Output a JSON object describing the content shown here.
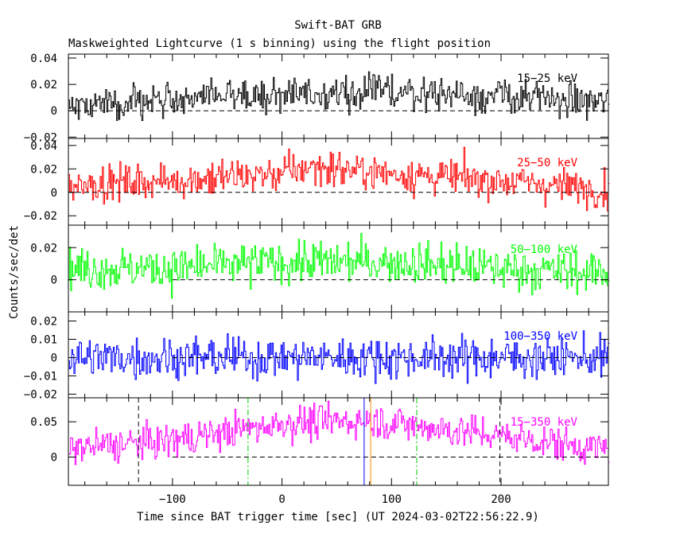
{
  "title": "Swift-BAT GRB",
  "subtitle": "Maskweighted Lightcurve (1 s binning) using the flight position",
  "chart_data": {
    "type": "line",
    "xlabel": "Time since BAT trigger time [sec] (UT 2024-03-02T22:56:22.9)",
    "ylabel": "Counts/sec/det",
    "xlim": [
      -195,
      298
    ],
    "xticks": [
      -100,
      0,
      100,
      200
    ],
    "xtick_labels": [
      "−100",
      "0",
      "100",
      "200"
    ],
    "seed": 13,
    "panels": [
      {
        "label": "15−25 keV",
        "color": "#000000",
        "ylim": [
          -0.021,
          0.043
        ],
        "yticks": [
          -0.02,
          0,
          0.02,
          0.04
        ],
        "ytick_labels": [
          "−0.02",
          "0",
          "0.02",
          "0.04"
        ],
        "baseline": [
          [
            -195,
            0.005
          ],
          [
            -100,
            0.009
          ],
          [
            0,
            0.013
          ],
          [
            100,
            0.015
          ],
          [
            200,
            0.011
          ],
          [
            298,
            0.006
          ]
        ],
        "noise": 0.0065,
        "zero_line": [
          -195,
          298
        ]
      },
      {
        "label": "25−50 keV",
        "color": "#ff0000",
        "ylim": [
          -0.028,
          0.046
        ],
        "yticks": [
          -0.02,
          0,
          0.02,
          0.04
        ],
        "ytick_labels": [
          "−0.02",
          "0",
          "0.02",
          "0.04"
        ],
        "baseline": [
          [
            -195,
            0.007
          ],
          [
            -100,
            0.01
          ],
          [
            0,
            0.016
          ],
          [
            25,
            0.022
          ],
          [
            100,
            0.016
          ],
          [
            200,
            0.01
          ],
          [
            298,
            0.002
          ]
        ],
        "noise": 0.0075,
        "zero_line": [
          -195,
          298
        ]
      },
      {
        "label": "50−100 keV",
        "color": "#00ff00",
        "ylim": [
          -0.02,
          0.034
        ],
        "yticks": [
          0,
          0.02
        ],
        "ytick_labels": [
          "0",
          "0.02"
        ],
        "baseline": [
          [
            -195,
            0.007
          ],
          [
            -100,
            0.007
          ],
          [
            0,
            0.011
          ],
          [
            100,
            0.011
          ],
          [
            200,
            0.007
          ],
          [
            298,
            0.004
          ]
        ],
        "noise": 0.0065,
        "zero_line": [
          -100,
          298
        ]
      },
      {
        "label": "100−350 keV",
        "color": "#0000ff",
        "ylim": [
          -0.022,
          0.025
        ],
        "yticks": [
          -0.02,
          -0.01,
          0,
          0.01,
          0.02
        ],
        "ytick_labels": [
          "−0.02",
          "−0.01",
          "0",
          "0.01",
          "0.02"
        ],
        "baseline": [
          [
            -195,
            0.0
          ],
          [
            0,
            0.0
          ],
          [
            200,
            0.0
          ],
          [
            298,
            0.0
          ]
        ],
        "noise": 0.0055,
        "zero_line": [
          -100,
          298
        ]
      },
      {
        "label": "15−350 keV",
        "color": "#ff00ff",
        "ylim": [
          -0.04,
          0.084
        ],
        "yticks": [
          0,
          0.05
        ],
        "ytick_labels": [
          "0",
          "0.05"
        ],
        "baseline": [
          [
            -195,
            0.012
          ],
          [
            -100,
            0.024
          ],
          [
            0,
            0.048
          ],
          [
            80,
            0.052
          ],
          [
            200,
            0.03
          ],
          [
            298,
            0.01
          ]
        ],
        "noise": 0.012,
        "zero_line": [
          -100,
          298
        ]
      }
    ],
    "markers": [
      {
        "x": -131,
        "color": "#000000",
        "style": "dashed"
      },
      {
        "x": -31,
        "color": "#00cc00",
        "style": "dashdot"
      },
      {
        "x": 75,
        "color": "#0000ff",
        "style": "solid"
      },
      {
        "x": 81,
        "color": "#ff8c00",
        "style": "solid"
      },
      {
        "x": 123,
        "color": "#00cc00",
        "style": "dashdot"
      },
      {
        "x": 199,
        "color": "#000000",
        "style": "dashed"
      }
    ]
  }
}
